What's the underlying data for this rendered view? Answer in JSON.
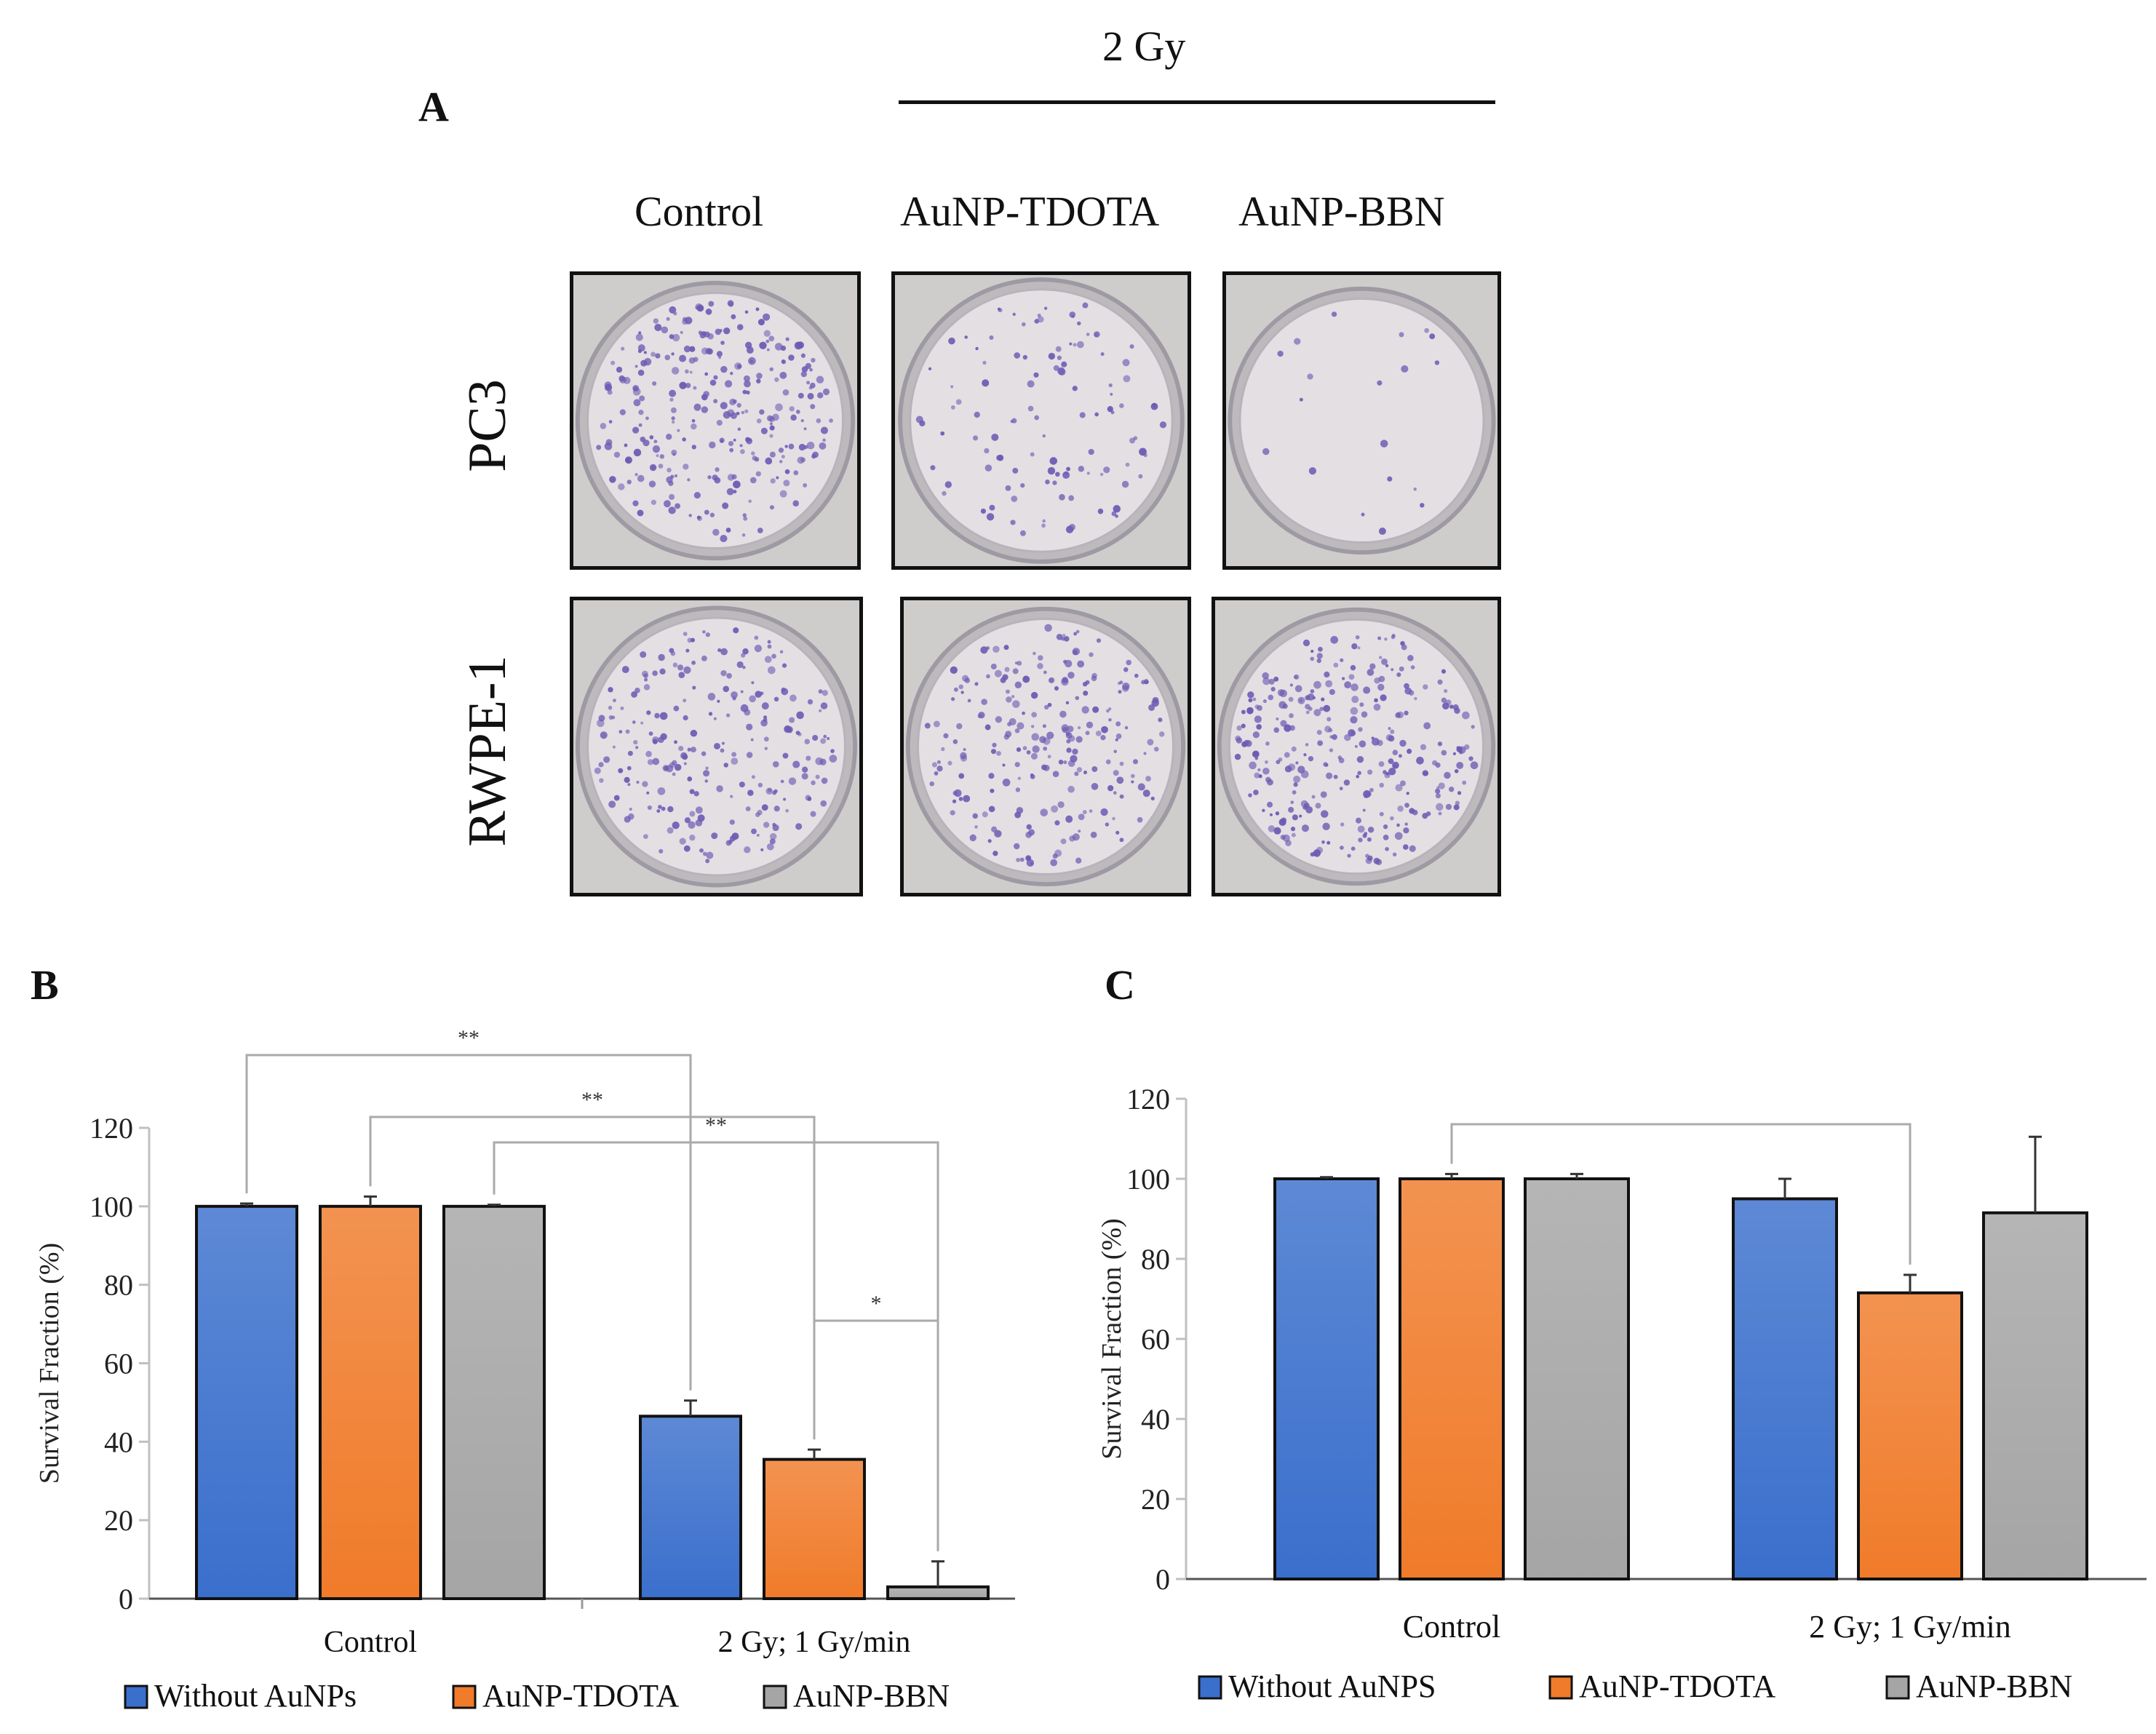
{
  "panels": {
    "A": {
      "label": "A",
      "dose_header": "2 Gy",
      "columns": [
        "Control",
        "AuNP-TDOTA",
        "AuNP-BBN"
      ],
      "rows": [
        "PC3",
        "RWPE-1"
      ],
      "colony_density": [
        [
          0.9,
          0.35,
          0.06
        ],
        [
          0.75,
          0.75,
          0.95
        ]
      ]
    }
  },
  "colors": {
    "without": "#3a6fcc",
    "tdota": "#f07b2a",
    "bbn": "#a5a5a5",
    "colony": "#6a5bb3"
  },
  "chart_data": [
    {
      "id": "B",
      "label": "B",
      "type": "bar",
      "ylabel": "Survival Fraction (%)",
      "ylim": [
        0,
        120
      ],
      "yticks": [
        0,
        20,
        40,
        60,
        80,
        100,
        120
      ],
      "categories": [
        "Control",
        "2 Gy; 1 Gy/min"
      ],
      "series": [
        {
          "name": "Without AuNPs",
          "color": "#3a6fcc",
          "values": [
            100,
            46.5
          ],
          "errors": [
            0.7,
            4
          ]
        },
        {
          "name": "AuNP-TDOTA",
          "color": "#f07b2a",
          "values": [
            100,
            35.5
          ],
          "errors": [
            2.5,
            2.5
          ]
        },
        {
          "name": "AuNP-BBN",
          "color": "#a5a5a5",
          "values": [
            100,
            3
          ],
          "errors": [
            0.4,
            6.5
          ]
        }
      ],
      "significance": [
        {
          "from": [
            0,
            0
          ],
          "to": [
            1,
            0
          ],
          "label": "**"
        },
        {
          "from": [
            0,
            1
          ],
          "to": [
            1,
            1
          ],
          "label": "**"
        },
        {
          "from": [
            0,
            2
          ],
          "to": [
            1,
            2
          ],
          "label": "**"
        },
        {
          "from": [
            1,
            1
          ],
          "to": [
            1,
            2
          ],
          "label": "*"
        }
      ]
    },
    {
      "id": "C",
      "label": "C",
      "type": "bar",
      "ylabel": "Survival Fraction (%)",
      "ylim": [
        0,
        120
      ],
      "yticks": [
        0,
        20,
        40,
        60,
        80,
        100,
        120
      ],
      "categories": [
        "Control",
        "2 Gy; 1 Gy/min"
      ],
      "series": [
        {
          "name": "Without AuNPS",
          "color": "#3a6fcc",
          "values": [
            100,
            95
          ],
          "errors": [
            0.4,
            5
          ]
        },
        {
          "name": "AuNP-TDOTA",
          "color": "#f07b2a",
          "values": [
            100,
            71.5
          ],
          "errors": [
            1.2,
            4.5
          ]
        },
        {
          "name": "AuNP-BBN",
          "color": "#a5a5a5",
          "values": [
            100,
            91.5
          ],
          "errors": [
            1.2,
            19
          ]
        }
      ],
      "significance": [
        {
          "from": [
            0,
            1
          ],
          "to": [
            1,
            1
          ],
          "label": ""
        }
      ]
    }
  ]
}
